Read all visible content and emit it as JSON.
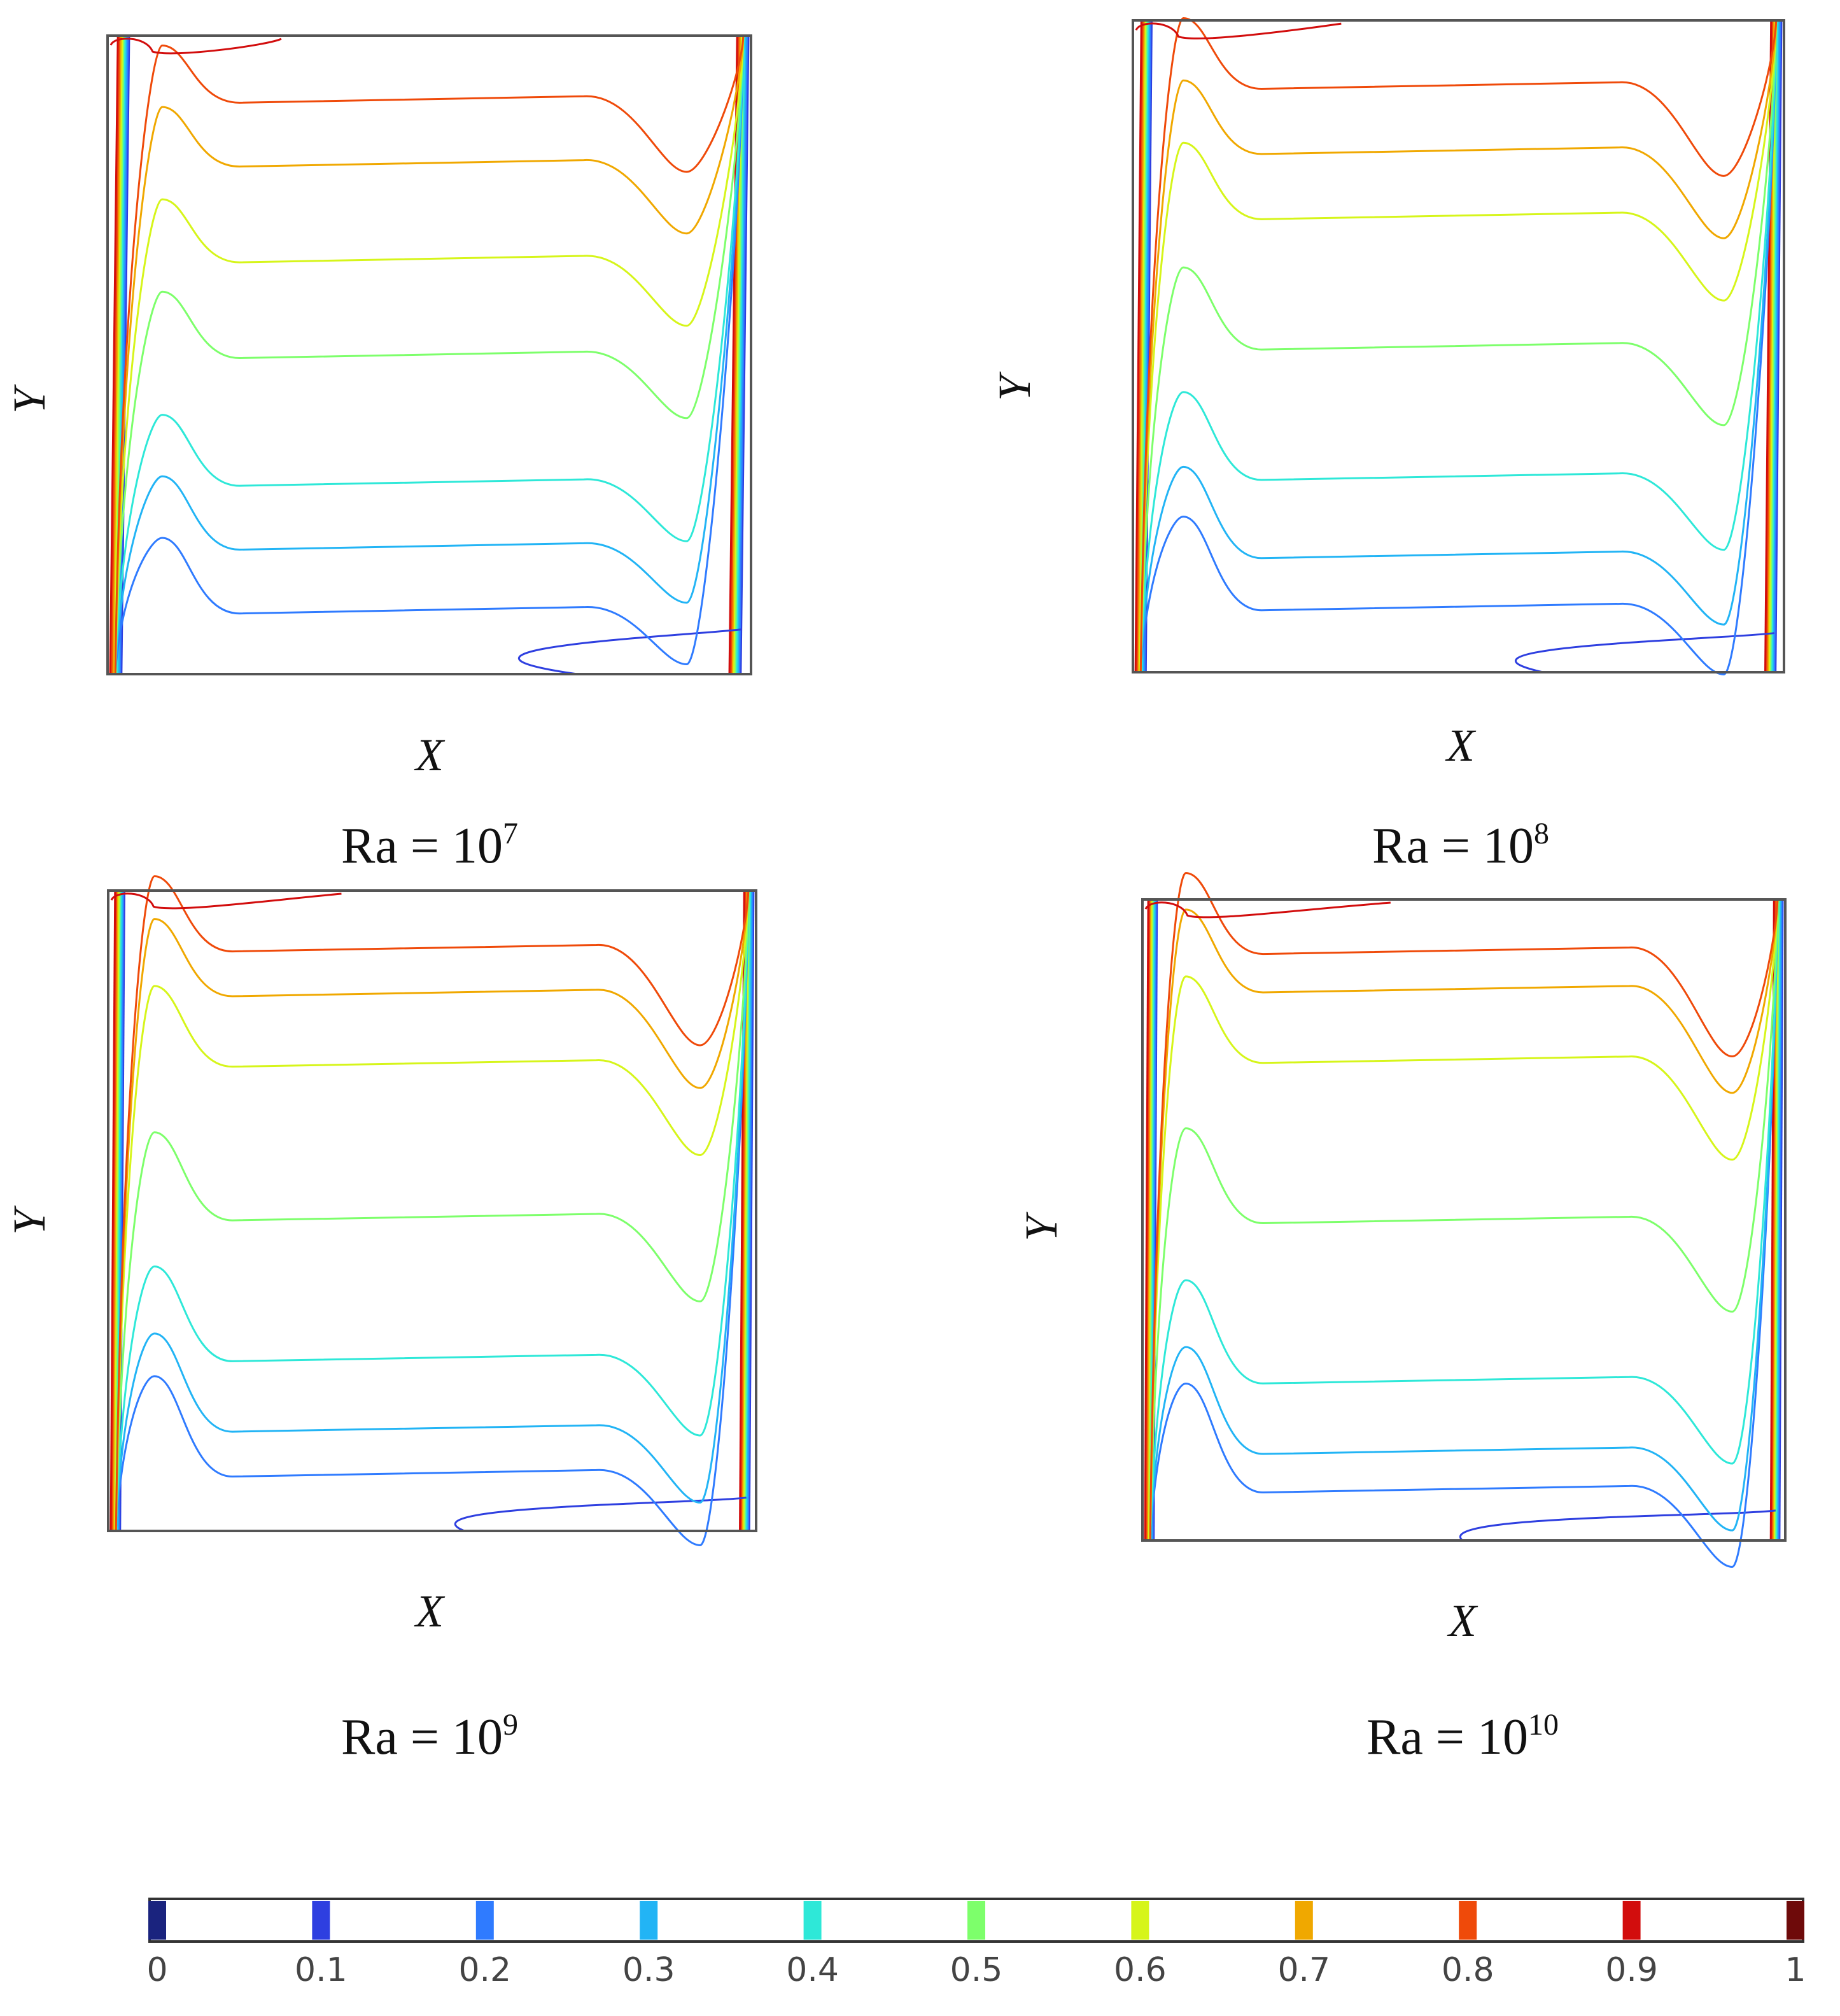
{
  "chart_data": [
    {
      "type": "contour",
      "title": "Ra = 10^7",
      "title_base": "Ra = 10",
      "title_exp": "7",
      "xlabel": "X",
      "ylabel": "Y",
      "levels": [
        0.1,
        0.2,
        0.3,
        0.4,
        0.5,
        0.6,
        0.7,
        0.8,
        0.9
      ],
      "core_levels_y": [
        0.1,
        0.2,
        0.3,
        0.5,
        0.65,
        0.8,
        0.9
      ],
      "overshoot": 0.09
    },
    {
      "type": "contour",
      "title": "Ra = 10^8",
      "title_base": "Ra = 10",
      "title_exp": "8",
      "xlabel": "X",
      "ylabel": "Y",
      "levels": [
        0.1,
        0.2,
        0.3,
        0.4,
        0.5,
        0.6,
        0.7,
        0.8,
        0.9
      ],
      "core_levels_y": [
        0.1,
        0.18,
        0.3,
        0.5,
        0.7,
        0.8,
        0.9
      ],
      "overshoot": 0.11
    },
    {
      "type": "contour",
      "title": "Ra = 10^9",
      "title_base": "Ra = 10",
      "title_exp": "9",
      "xlabel": "X",
      "ylabel": "Y",
      "levels": [
        0.1,
        0.2,
        0.3,
        0.4,
        0.5,
        0.6,
        0.7,
        0.8,
        0.9
      ],
      "core_levels_y": [
        0.09,
        0.16,
        0.27,
        0.49,
        0.73,
        0.84,
        0.91
      ],
      "overshoot": 0.12
    },
    {
      "type": "contour",
      "title": "Ra = 10^10",
      "title_base": "Ra = 10",
      "title_exp": "10",
      "xlabel": "X",
      "ylabel": "Y",
      "levels": [
        0.1,
        0.2,
        0.3,
        0.4,
        0.5,
        0.6,
        0.7,
        0.8,
        0.9
      ],
      "core_levels_y": [
        0.08,
        0.14,
        0.25,
        0.5,
        0.75,
        0.86,
        0.92
      ],
      "overshoot": 0.13
    }
  ],
  "colorbar": {
    "ticks": [
      "0",
      "0.1",
      "0.2",
      "0.3",
      "0.4",
      "0.5",
      "0.6",
      "0.7",
      "0.8",
      "0.9",
      "1"
    ],
    "colors": [
      "#1a237e",
      "#2e3fe0",
      "#2f7bff",
      "#22b4f5",
      "#2ee8d8",
      "#7dff6b",
      "#d6f51a",
      "#f0a800",
      "#ef4a0a",
      "#d20d0d",
      "#6e0a0a"
    ]
  }
}
